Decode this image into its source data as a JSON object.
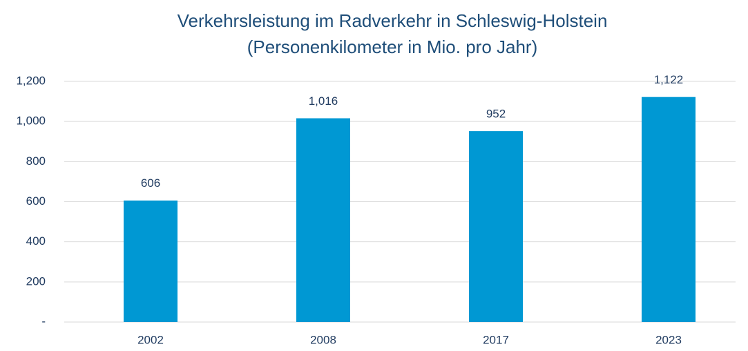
{
  "chart_data": {
    "type": "bar",
    "title": "Verkehrsleistung im Radverkehr in Schleswig-Holstein",
    "subtitle": "(Personenkilometer in Mio. pro Jahr)",
    "categories": [
      "2002",
      "2008",
      "2017",
      "2023"
    ],
    "values": [
      606,
      1016,
      952,
      1122
    ],
    "value_labels": [
      "606",
      "1,016",
      "952",
      "1,122"
    ],
    "color": "#0098d3",
    "ylim": [
      0,
      1200
    ],
    "yticks": [
      {
        "value": 0,
        "label": "-"
      },
      200,
      400,
      600,
      800,
      {
        "value": 1000,
        "label": "1,000"
      },
      {
        "value": 1200,
        "label": "1,200"
      }
    ],
    "grid": true
  }
}
